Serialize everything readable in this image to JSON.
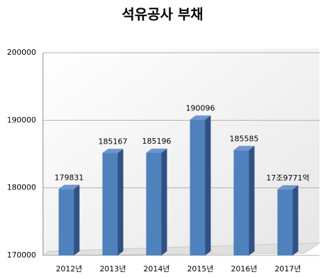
{
  "chart_data": {
    "type": "bar",
    "title": "석유공사 부채",
    "categories": [
      "2012년",
      "2013년",
      "2014년",
      "2015년",
      "2016년",
      "2017년"
    ],
    "values": [
      179831,
      185167,
      185196,
      190096,
      185585,
      179771
    ],
    "value_labels": [
      "179831",
      "185167",
      "185196",
      "190096",
      "185585",
      "17조9771억"
    ],
    "color": "#4f81bd",
    "ylim": [
      170000,
      200000
    ],
    "yticks": [
      170000,
      180000,
      190000,
      200000
    ],
    "grid": true
  }
}
